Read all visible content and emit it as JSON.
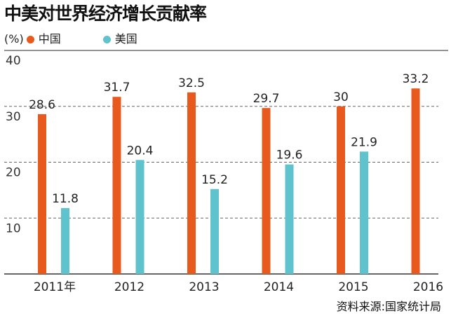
{
  "chart_data": {
    "type": "bar",
    "title": "中美对世界经济增长贡献率",
    "ylabel": "(%)",
    "categories": [
      "2011年",
      "2012",
      "2013",
      "2014",
      "2015",
      "2016"
    ],
    "series": [
      {
        "name": "中国",
        "color": "#e8591d",
        "values": [
          28.6,
          31.7,
          32.5,
          29.7,
          30,
          33.2
        ]
      },
      {
        "name": "美国",
        "color": "#5ec3cd",
        "values": [
          11.8,
          20.4,
          15.2,
          19.6,
          21.9,
          null
        ]
      }
    ],
    "data_labels": [
      [
        "28.6",
        "31.7",
        "32.5",
        "29.7",
        "30",
        "33.2"
      ],
      [
        "11.8",
        "20.4",
        "15.2",
        "19.6",
        "21.9",
        ""
      ]
    ],
    "yticks": [
      "10",
      "20",
      "30",
      "40"
    ],
    "ylim": [
      0,
      40
    ],
    "grid": "dashed horizontal",
    "legend": "top-left",
    "source": "资料来源:国家统计局"
  }
}
